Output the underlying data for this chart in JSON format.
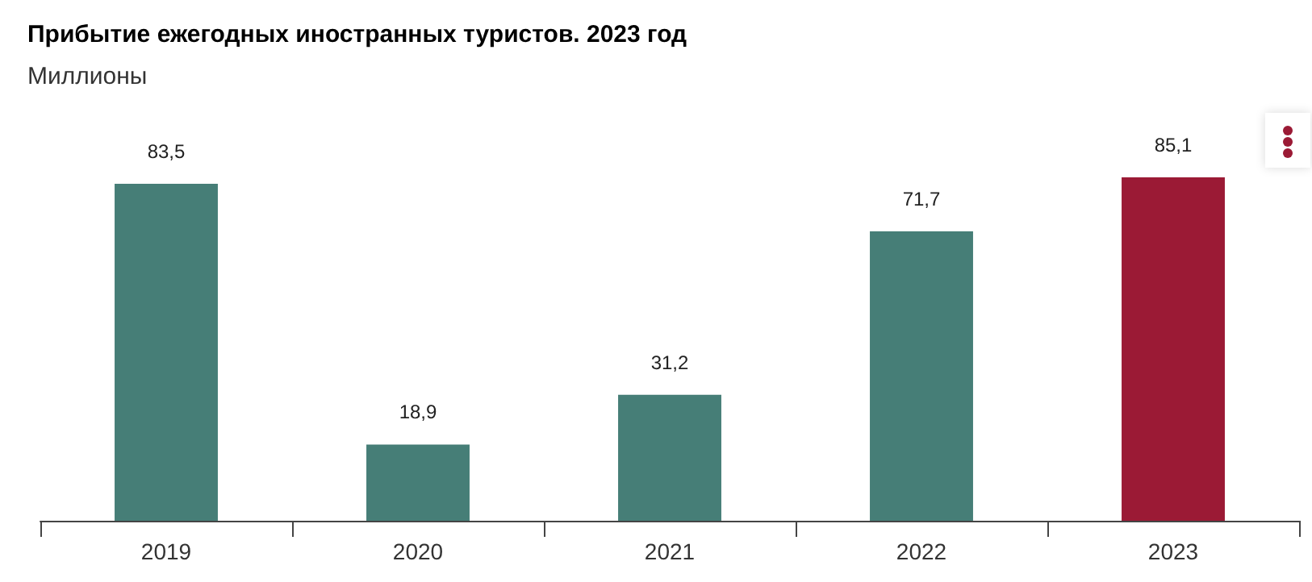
{
  "chart_data": {
    "type": "bar",
    "title": "Прибытие ежегодных иностранных туристов. 2023 год",
    "subtitle": "Миллионы",
    "categories": [
      "2019",
      "2020",
      "2021",
      "2022",
      "2023"
    ],
    "values": [
      83.5,
      18.9,
      31.2,
      71.7,
      85.1
    ],
    "value_labels": [
      "83,5",
      "18,9",
      "31,2",
      "71,7",
      "85,1"
    ],
    "colors": [
      "#467e77",
      "#467e77",
      "#467e77",
      "#467e77",
      "#9b1a35"
    ]
  }
}
